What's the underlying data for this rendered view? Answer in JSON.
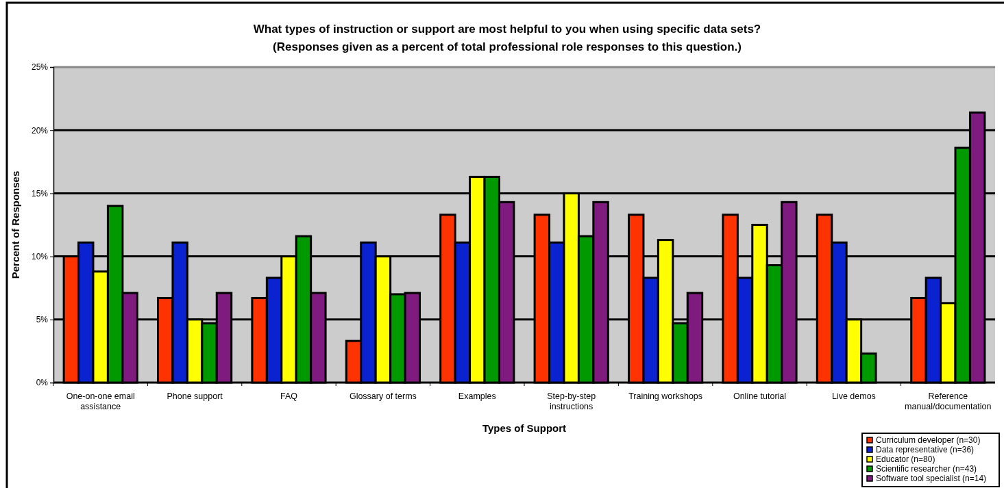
{
  "chart_data": {
    "type": "bar",
    "title": "What types of instruction or support are most helpful to you when using specific data sets?",
    "subtitle": "(Responses given as a percent of total professional role responses to this question.)",
    "xlabel": "Types of Support",
    "ylabel": "Percent of Responses",
    "categories": [
      "One-on-one email assistance",
      "Phone support",
      "FAQ",
      "Glossary of terms",
      "Examples",
      "Step-by-step instructions",
      "Training workshops",
      "Online tutorial",
      "Live demos",
      "Reference manual/documentation"
    ],
    "series": [
      {
        "name": "Curriculum developer (n=30)",
        "color": "#ff3300",
        "values": [
          10,
          6.7,
          6.7,
          3.3,
          13.3,
          13.3,
          13.3,
          13.3,
          13.3,
          6.7
        ]
      },
      {
        "name": "Data representative (n=36)",
        "color": "#0a22d0",
        "values": [
          11.1,
          11.1,
          8.3,
          11.1,
          11.1,
          11.1,
          8.3,
          8.3,
          11.1,
          8.3
        ]
      },
      {
        "name": "Educator (n=80)",
        "color": "#ffff00",
        "values": [
          8.8,
          5,
          10,
          10,
          16.3,
          15,
          11.3,
          12.5,
          5,
          6.3
        ]
      },
      {
        "name": "Scientific researcher (n=43)",
        "color": "#009900",
        "values": [
          14,
          4.7,
          11.6,
          7,
          16.3,
          11.6,
          4.7,
          9.3,
          2.3,
          18.6
        ]
      },
      {
        "name": "Software tool specialist (n=14)",
        "color": "#7f1a7f",
        "values": [
          7.1,
          7.1,
          7.1,
          7.1,
          14.3,
          14.3,
          7.1,
          14.3,
          0,
          21.4
        ]
      }
    ],
    "ylim": [
      0,
      25
    ],
    "yticks": [
      {
        "value": 0,
        "label": "0%"
      },
      {
        "value": 5,
        "label": "5%"
      },
      {
        "value": 10,
        "label": "10%"
      },
      {
        "value": 15,
        "label": "15%"
      },
      {
        "value": 20,
        "label": "20%"
      },
      {
        "value": 25,
        "label": "25%"
      }
    ],
    "grid": "y",
    "legend": "bottom right"
  }
}
